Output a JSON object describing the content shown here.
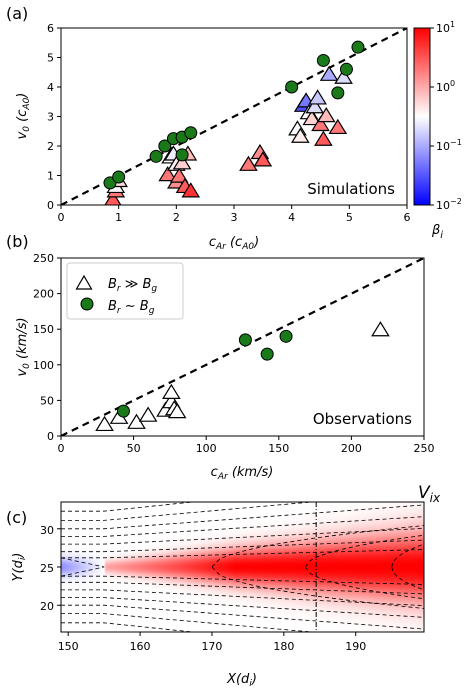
{
  "chart_data": [
    {
      "panel": "(a)",
      "type": "scatter",
      "xlabel_base": "c",
      "xlabel_sub": "Ar",
      "xlabel_unit": "(c",
      "xlabel_unit_sub": "A0",
      "xlabel_close": ")",
      "ylabel_base": "v",
      "ylabel_sub": "0",
      "ylabel_unit": "(c",
      "ylabel_unit_sub": "A0",
      "ylabel_close": ")",
      "xlim": [
        0,
        6
      ],
      "ylim": [
        0,
        6
      ],
      "xticks": [
        "0",
        "1",
        "2",
        "3",
        "4",
        "5",
        "6"
      ],
      "yticks": [
        "0",
        "1",
        "2",
        "3",
        "4",
        "5",
        "6"
      ],
      "annotation": "Simulations",
      "colorbar": {
        "label_base": "β",
        "label_sub": "i",
        "scale": "log",
        "ticks": [
          {
            "base": "10",
            "exp": "1",
            "value": 10
          },
          {
            "base": "10",
            "exp": "0",
            "value": 1
          },
          {
            "base": "10",
            "exp": "−1",
            "value": 0.1
          },
          {
            "base": "10",
            "exp": "−2",
            "value": 0.01
          }
        ],
        "colors": [
          "#0000ff",
          "#ffffff",
          "#ff0000"
        ]
      },
      "reference_line": {
        "slope": 1,
        "style": "dashed"
      },
      "circles": [
        {
          "x": 0.85,
          "y": 0.75
        },
        {
          "x": 1.0,
          "y": 0.95
        },
        {
          "x": 1.65,
          "y": 1.65
        },
        {
          "x": 1.8,
          "y": 2.0
        },
        {
          "x": 1.95,
          "y": 2.25
        },
        {
          "x": 2.1,
          "y": 1.7
        },
        {
          "x": 2.1,
          "y": 2.3
        },
        {
          "x": 2.25,
          "y": 2.45
        },
        {
          "x": 4.0,
          "y": 4.0
        },
        {
          "x": 4.55,
          "y": 4.9
        },
        {
          "x": 4.8,
          "y": 3.8
        },
        {
          "x": 4.95,
          "y": 4.6
        },
        {
          "x": 5.15,
          "y": 5.35
        }
      ],
      "triangles": [
        {
          "x": 0.9,
          "y": 0.15,
          "beta": 3
        },
        {
          "x": 0.95,
          "y": 0.45,
          "beta": 2
        },
        {
          "x": 0.95,
          "y": 0.6,
          "beta": 0.3
        },
        {
          "x": 1.0,
          "y": 0.8,
          "beta": 0.5
        },
        {
          "x": 1.85,
          "y": 1.0,
          "beta": 2
        },
        {
          "x": 1.9,
          "y": 1.6,
          "beta": 0.3
        },
        {
          "x": 1.95,
          "y": 1.7,
          "beta": 0.25
        },
        {
          "x": 2.0,
          "y": 0.75,
          "beta": 1.5
        },
        {
          "x": 2.0,
          "y": 1.35,
          "beta": 0.4
        },
        {
          "x": 2.05,
          "y": 0.95,
          "beta": 2
        },
        {
          "x": 2.1,
          "y": 1.4,
          "beta": 0.6
        },
        {
          "x": 2.15,
          "y": 0.6,
          "beta": 3
        },
        {
          "x": 2.2,
          "y": 1.7,
          "beta": 0.8
        },
        {
          "x": 2.25,
          "y": 0.45,
          "beta": 5
        },
        {
          "x": 3.25,
          "y": 1.35,
          "beta": 2
        },
        {
          "x": 3.45,
          "y": 1.75,
          "beta": 1.5
        },
        {
          "x": 3.5,
          "y": 1.5,
          "beta": 3
        },
        {
          "x": 4.1,
          "y": 2.55,
          "beta": 0.3
        },
        {
          "x": 4.15,
          "y": 2.3,
          "beta": 0.4
        },
        {
          "x": 4.2,
          "y": 3.35,
          "beta": 0.03
        },
        {
          "x": 4.25,
          "y": 3.5,
          "beta": 0.05
        },
        {
          "x": 4.3,
          "y": 3.1,
          "beta": 0.3
        },
        {
          "x": 4.35,
          "y": 2.9,
          "beta": 0.6
        },
        {
          "x": 4.4,
          "y": 3.3,
          "beta": 0.2
        },
        {
          "x": 4.45,
          "y": 3.6,
          "beta": 0.15
        },
        {
          "x": 4.5,
          "y": 2.7,
          "beta": 2
        },
        {
          "x": 4.55,
          "y": 2.2,
          "beta": 3
        },
        {
          "x": 4.6,
          "y": 3.0,
          "beta": 0.8
        },
        {
          "x": 4.65,
          "y": 4.4,
          "beta": 0.1
        },
        {
          "x": 4.8,
          "y": 2.6,
          "beta": 2
        },
        {
          "x": 4.9,
          "y": 4.3,
          "beta": 0.2
        }
      ]
    },
    {
      "panel": "(b)",
      "type": "scatter",
      "xlabel_base": "c",
      "xlabel_sub": "Ar",
      "xlabel_unit": "(km/s)",
      "ylabel_base": "v",
      "ylabel_sub": "0",
      "ylabel_unit": "(km/s)",
      "xlim": [
        0,
        250
      ],
      "ylim": [
        0,
        250
      ],
      "xticks": [
        "0",
        "50",
        "100",
        "150",
        "200",
        "250"
      ],
      "yticks": [
        "0",
        "50",
        "100",
        "150",
        "200",
        "250"
      ],
      "annotation": "Observations",
      "legend": {
        "placement": "top-left",
        "entries": [
          {
            "marker": "triangle",
            "base": "B",
            "sub": "r",
            "rel": " ≫ ",
            "base2": "B",
            "sub2": "g"
          },
          {
            "marker": "circle",
            "base": "B",
            "sub": "r",
            "rel": " ∼ ",
            "base2": "B",
            "sub2": "g"
          }
        ]
      },
      "reference_line": {
        "slope": 1,
        "style": "dashed"
      },
      "circles": [
        {
          "x": 43,
          "y": 35
        },
        {
          "x": 127,
          "y": 135
        },
        {
          "x": 142,
          "y": 115
        },
        {
          "x": 155,
          "y": 140
        }
      ],
      "triangles": [
        {
          "x": 30,
          "y": 15
        },
        {
          "x": 40,
          "y": 25
        },
        {
          "x": 52,
          "y": 18
        },
        {
          "x": 60,
          "y": 28
        },
        {
          "x": 72,
          "y": 35
        },
        {
          "x": 76,
          "y": 47
        },
        {
          "x": 76,
          "y": 60
        },
        {
          "x": 78,
          "y": 37
        },
        {
          "x": 80,
          "y": 33
        },
        {
          "x": 220,
          "y": 148
        }
      ]
    },
    {
      "panel": "(c)",
      "type": "heatmap",
      "title_base": "V",
      "title_sub": "ix",
      "xlabel_base": "X",
      "xlabel_unit": "(d",
      "xlabel_unit_sub": "i",
      "xlabel_close": ")",
      "ylabel_base": "Y",
      "ylabel_unit": "(d",
      "ylabel_unit_sub": "i",
      "ylabel_close": ")",
      "xlim": [
        149,
        199.5
      ],
      "ylim": [
        16.5,
        33.5
      ],
      "xticks": [
        "150",
        "160",
        "170",
        "180",
        "190"
      ],
      "yticks": [
        "20",
        "25",
        "30"
      ],
      "center_y": 25,
      "vertical_marker_x": 184.5,
      "colors": [
        "#0000ff",
        "#ffffff",
        "#ff0000"
      ]
    }
  ]
}
